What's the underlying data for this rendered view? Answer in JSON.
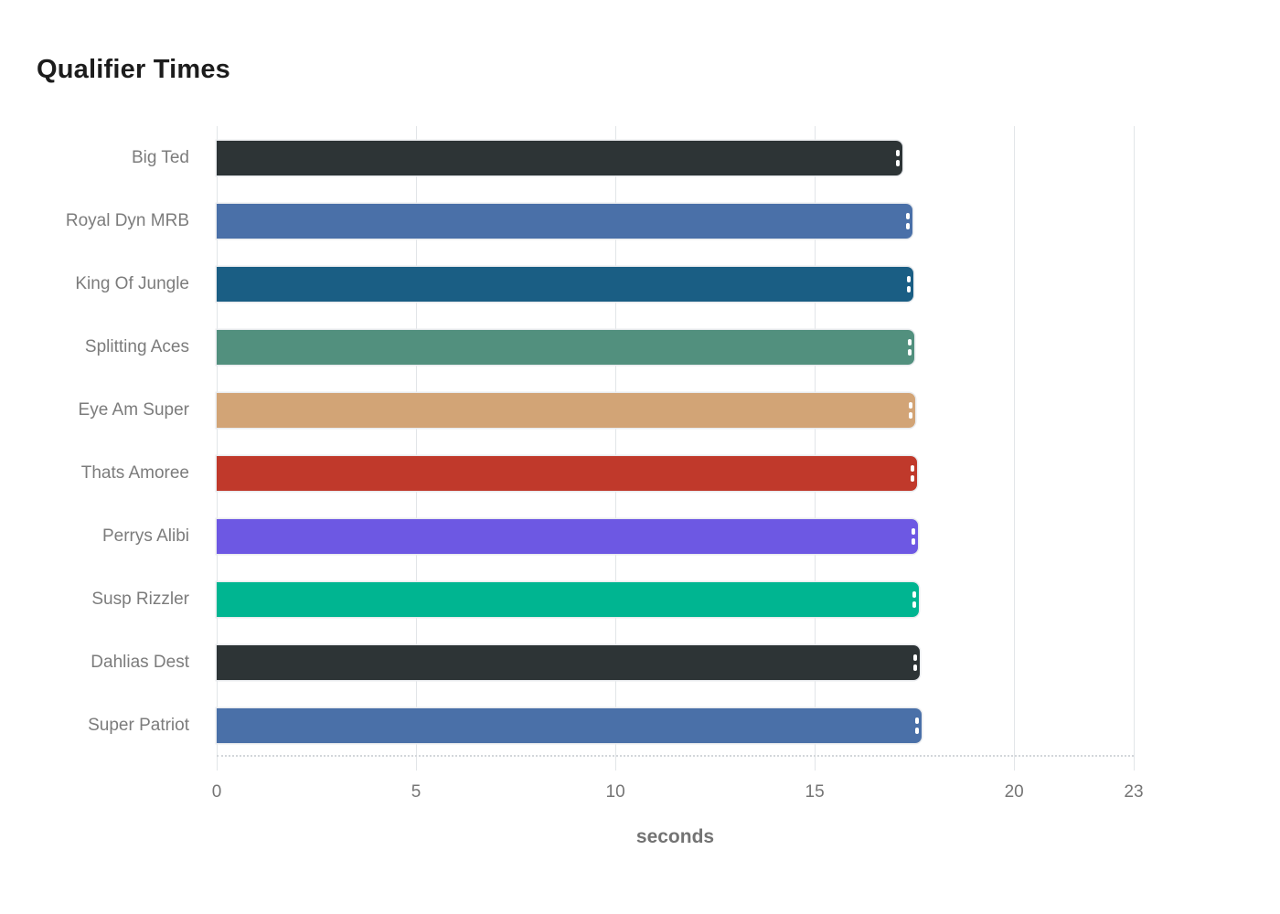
{
  "chart_data": {
    "type": "bar",
    "orientation": "horizontal",
    "title": "Qualifier Times",
    "xlabel": "seconds",
    "categories": [
      "Big Ted",
      "Royal Dyn MRB",
      "King Of Jungle",
      "Splitting Aces",
      "Eye Am Super",
      "Thats Amoree",
      "Perrys Alibi",
      "Susp Rizzler",
      "Dahlias Dest",
      "Super Patriot"
    ],
    "values": [
      17.2,
      17.44,
      17.48,
      17.5,
      17.53,
      17.56,
      17.58,
      17.62,
      17.64,
      17.69
    ],
    "bar_colors": [
      "#2d3436",
      "#4a70a8",
      "#1a5e84",
      "#52907e",
      "#d2a476",
      "#c0392b",
      "#6d58e3",
      "#00b591",
      "#2d3436",
      "#4a70a8"
    ],
    "xlim": [
      0,
      23
    ],
    "xticks": [
      0,
      5,
      10,
      15,
      20,
      23
    ],
    "legend": false,
    "grid": "vertical"
  },
  "style": {
    "gridline_color": "#e2e5e8",
    "axis_label_color": "#7c7c7c",
    "title_color": "#1c1c1c"
  }
}
